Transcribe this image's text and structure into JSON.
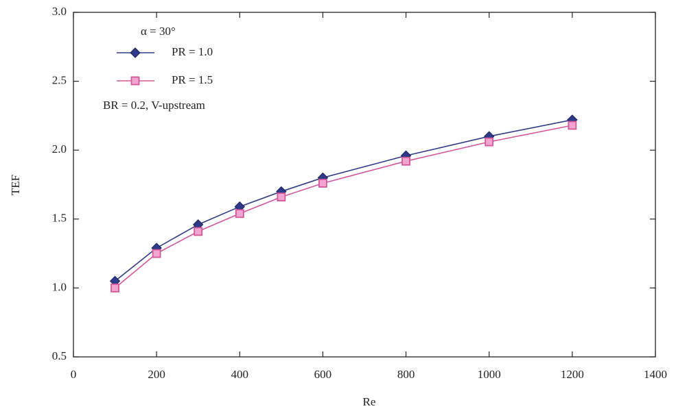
{
  "chart_data": {
    "type": "line",
    "xlabel": "Re",
    "ylabel": "TEF",
    "annotation": "α = 30°",
    "note": "BR = 0.2, V-upstream",
    "x": [
      100,
      200,
      300,
      400,
      500,
      600,
      800,
      1000,
      1200
    ],
    "series": [
      {
        "name": "PR = 1.0",
        "color": "#2e3a87",
        "marker": "diamond",
        "values": [
          1.05,
          1.29,
          1.46,
          1.59,
          1.7,
          1.8,
          1.96,
          2.1,
          2.22
        ]
      },
      {
        "name": "PR = 1.5",
        "color": "#d4559a",
        "marker": "square",
        "values": [
          1.0,
          1.25,
          1.41,
          1.54,
          1.66,
          1.76,
          1.92,
          2.06,
          2.18
        ]
      }
    ],
    "xlim": [
      0,
      1400
    ],
    "xticks": [
      0,
      200,
      400,
      600,
      800,
      1000,
      1200,
      1400
    ],
    "ylim": [
      0.5,
      3.0
    ],
    "yticks": [
      {
        "value": 0.5,
        "label": "0.5"
      },
      {
        "value": 1,
        "label": "1.0"
      },
      {
        "value": 1.5,
        "label": "1.5"
      },
      {
        "value": 2,
        "label": "2.0"
      },
      {
        "value": 2.5,
        "label": "2.5"
      },
      {
        "value": 3,
        "label": "3.0"
      }
    ],
    "grid": false,
    "legend": "upper left"
  }
}
